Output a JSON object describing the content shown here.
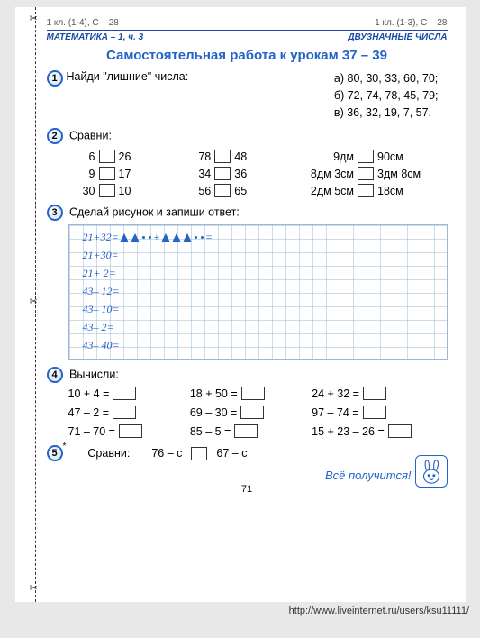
{
  "top": {
    "left": "1 кл. (1-4), С – 28",
    "right": "1 кл. (1-3), С – 28"
  },
  "header": {
    "left": "МАТЕМАТИКА – 1, ч. 3",
    "right": "ДВУЗНАЧНЫЕ ЧИСЛА"
  },
  "title": "Самостоятельная работа к урокам 37 – 39",
  "task1": {
    "num": "1",
    "label": "Найди \"лишние\" числа:",
    "a": "а) 80, 30, 33, 60, 70;",
    "b": "б) 72, 74, 78, 45, 79;",
    "c": "в) 36, 32, 19, 7, 57."
  },
  "task2": {
    "num": "2",
    "label": "Сравни:",
    "rows": [
      {
        "a1": "6",
        "a2": "26",
        "b1": "78",
        "b2": "48",
        "c1": "9дм",
        "c2": "90см"
      },
      {
        "a1": "9",
        "a2": "17",
        "b1": "34",
        "b2": "36",
        "c1": "8дм 3см",
        "c2": "3дм 8см"
      },
      {
        "a1": "30",
        "a2": "10",
        "b1": "56",
        "b2": "65",
        "c1": "2дм 5см",
        "c2": "18см"
      }
    ]
  },
  "task3": {
    "num": "3",
    "label": "Сделай рисунок и запиши ответ:",
    "lines": [
      "21+32=",
      "21+30=",
      "21+ 2=",
      "43– 12=",
      "43– 10=",
      "43–  2=",
      "43– 40="
    ]
  },
  "task4": {
    "num": "4",
    "label": "Вычисли:",
    "items": [
      "10 + 4 =",
      "18 + 50 =",
      "24 + 32 =",
      "47 – 2 =",
      "69 – 30 =",
      "97 – 74 =",
      "71 – 70 =",
      "85 – 5 =",
      "15 + 23 – 26 ="
    ]
  },
  "task5": {
    "num": "5",
    "star": "*",
    "label": "Сравни:",
    "left": "76 – c",
    "right": "67 – c"
  },
  "footer": "Всё получится!",
  "pagenum": "71",
  "url": "http://www.liveinternet.ru/users/ksu11111/"
}
